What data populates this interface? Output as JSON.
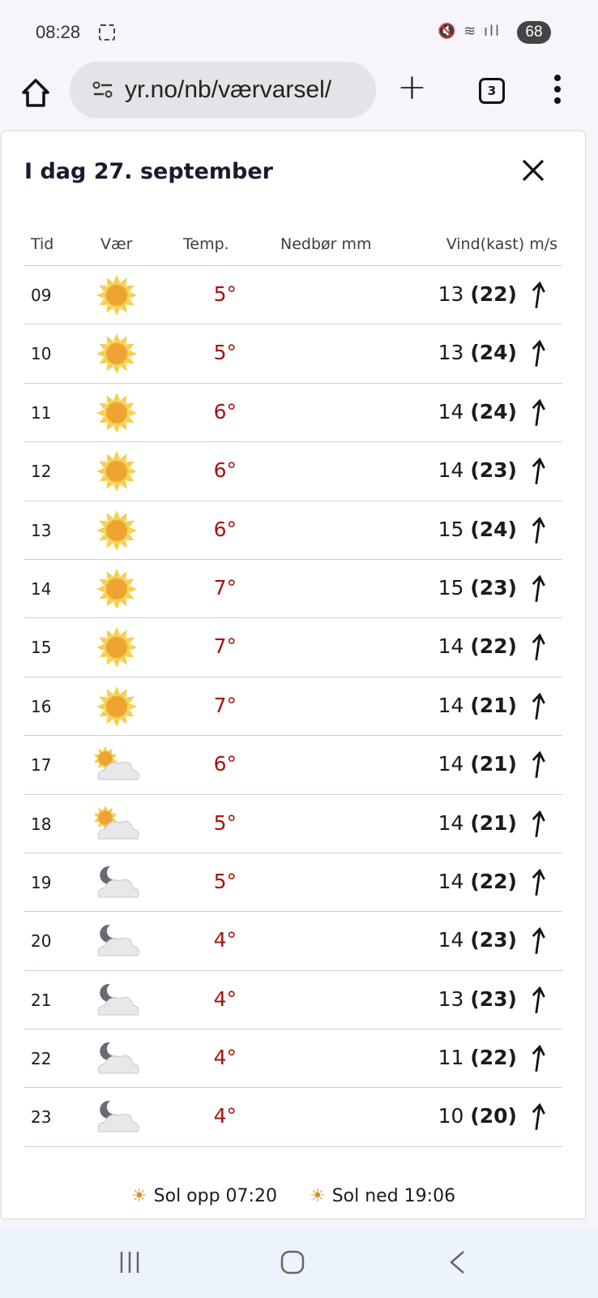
{
  "status": {
    "time": "08:28",
    "battery": "68"
  },
  "browser": {
    "url": "yr.no/nb/værvarsel/",
    "tab_count": "3"
  },
  "dialog": {
    "title": "I dag 27. september"
  },
  "table": {
    "headers": {
      "time": "Tid",
      "weather": "Vær",
      "temp": "Temp.",
      "precip": "Nedbør mm",
      "wind": "Vind(kast) m/s"
    },
    "rows": [
      {
        "time": "09",
        "icon": "sun",
        "temp": "5°",
        "wind": "13",
        "gust": "(22)"
      },
      {
        "time": "10",
        "icon": "sun",
        "temp": "5°",
        "wind": "13",
        "gust": "(24)"
      },
      {
        "time": "11",
        "icon": "sun",
        "temp": "6°",
        "wind": "14",
        "gust": "(24)"
      },
      {
        "time": "12",
        "icon": "sun",
        "temp": "6°",
        "wind": "14",
        "gust": "(23)"
      },
      {
        "time": "13",
        "icon": "sun",
        "temp": "6°",
        "wind": "15",
        "gust": "(24)"
      },
      {
        "time": "14",
        "icon": "sun",
        "temp": "7°",
        "wind": "15",
        "gust": "(23)"
      },
      {
        "time": "15",
        "icon": "sun",
        "temp": "7°",
        "wind": "14",
        "gust": "(22)"
      },
      {
        "time": "16",
        "icon": "sun",
        "temp": "7°",
        "wind": "14",
        "gust": "(21)"
      },
      {
        "time": "17",
        "icon": "partly-cloudy-day",
        "temp": "6°",
        "wind": "14",
        "gust": "(21)"
      },
      {
        "time": "18",
        "icon": "partly-cloudy-day",
        "temp": "5°",
        "wind": "14",
        "gust": "(21)"
      },
      {
        "time": "19",
        "icon": "partly-cloudy-night",
        "temp": "5°",
        "wind": "14",
        "gust": "(22)"
      },
      {
        "time": "20",
        "icon": "partly-cloudy-night",
        "temp": "4°",
        "wind": "14",
        "gust": "(23)"
      },
      {
        "time": "21",
        "icon": "partly-cloudy-night",
        "temp": "4°",
        "wind": "13",
        "gust": "(23)"
      },
      {
        "time": "22",
        "icon": "partly-cloudy-night",
        "temp": "4°",
        "wind": "11",
        "gust": "(22)"
      },
      {
        "time": "23",
        "icon": "partly-cloudy-night",
        "temp": "4°",
        "wind": "10",
        "gust": "(20)"
      }
    ]
  },
  "sun": {
    "rise": "Sol opp 07:20",
    "set": "Sol ned 19:06"
  },
  "colors": {
    "temp": "#a8120c",
    "accent_sun": "#f0a83a"
  }
}
